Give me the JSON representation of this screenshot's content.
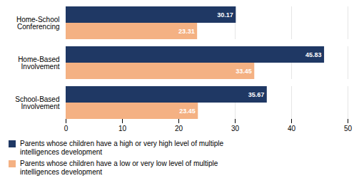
{
  "chart_data": {
    "type": "bar",
    "orientation": "horizontal",
    "categories": [
      "School-Based\nInvolvement",
      "Home-Based\nInvolvement",
      "Home-School\nConferencing"
    ],
    "series": [
      {
        "name": "Parents whose children have a high or very high level of multiple\nintelligences development",
        "color": "#1F3864",
        "values": [
          35.67,
          45.83,
          30.17
        ]
      },
      {
        "name": "Parents whose children have a low or very low level of multiple\nintelligences development",
        "color": "#F4B183",
        "values": [
          23.45,
          33.45,
          23.31
        ]
      }
    ],
    "xlim": [
      0,
      50
    ],
    "xticks": [
      0,
      10,
      20,
      30,
      40,
      50
    ],
    "grid": true,
    "legend": "bottom",
    "data_labels": true
  }
}
